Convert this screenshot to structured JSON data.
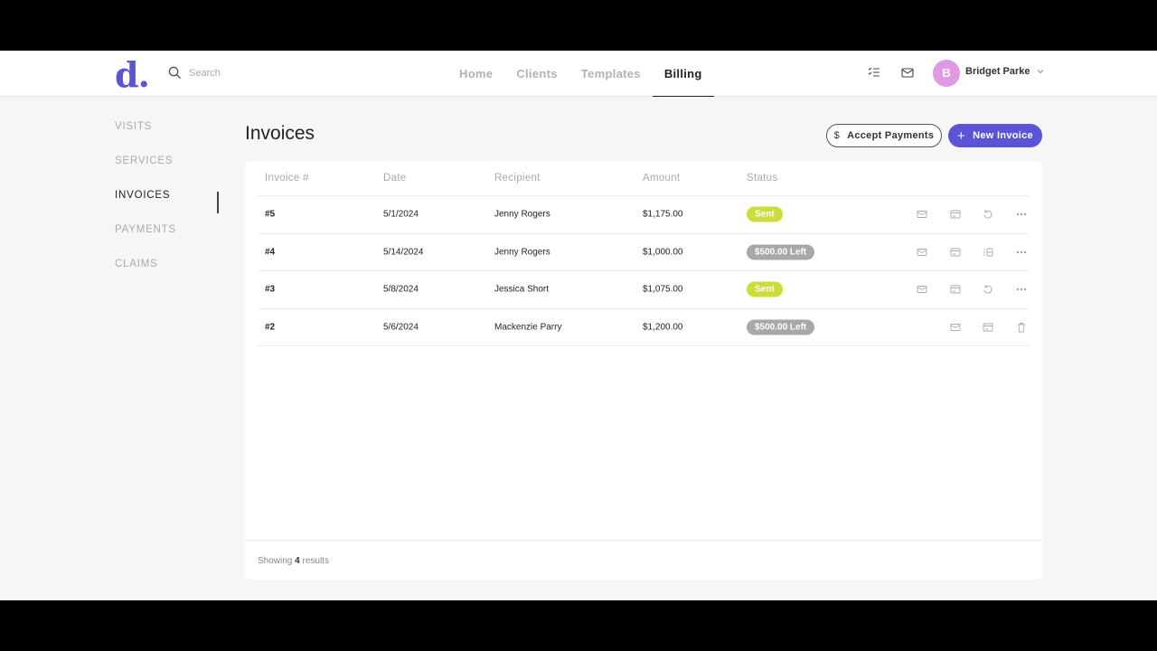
{
  "header": {
    "logo": "d.",
    "search_placeholder": "Search",
    "nav": [
      "Home",
      "Clients",
      "Templates",
      "Billing"
    ],
    "active_nav": "Billing",
    "user": {
      "initial": "B",
      "name": "Bridget Parke",
      "avatar_color": "#e09ae4"
    }
  },
  "sidebar": {
    "items": [
      "VISITS",
      "SERVICES",
      "INVOICES",
      "PAYMENTS",
      "CLAIMS"
    ],
    "active": "INVOICES"
  },
  "page": {
    "title": "Invoices",
    "accept_label": "Accept Payments",
    "new_label": "New Invoice",
    "accent": "#5b54d6"
  },
  "table": {
    "columns": [
      "Invoice #",
      "Date",
      "Recipient",
      "Amount",
      "Status"
    ],
    "rows": [
      {
        "invoice": "#5",
        "date": "5/1/2024",
        "recipient": "Jenny Rogers",
        "amount": "$1,175.00",
        "status": "Sent",
        "status_color": "#cddc39",
        "actions": [
          "mail-icon",
          "card-icon",
          "undo-icon",
          "more-icon"
        ]
      },
      {
        "invoice": "#4",
        "date": "5/14/2024",
        "recipient": "Jenny Rogers",
        "amount": "$1,000.00",
        "status": "$500.00 Left",
        "status_color": "#a8a8a8",
        "actions": [
          "mail-icon",
          "card-icon",
          "list-icon",
          "more-icon"
        ]
      },
      {
        "invoice": "#3",
        "date": "5/8/2024",
        "recipient": "Jessica Short",
        "amount": "$1,075.00",
        "status": "Sent",
        "status_color": "#cddc39",
        "actions": [
          "mail-icon",
          "card-icon",
          "undo-icon",
          "more-icon"
        ]
      },
      {
        "invoice": "#2",
        "date": "5/6/2024",
        "recipient": "Mackenzie Parry",
        "amount": "$1,200.00",
        "status": "$500.00 Left",
        "status_color": "#a8a8a8",
        "actions": [
          "mail-icon",
          "card-icon",
          "trash-icon"
        ]
      }
    ]
  },
  "footer": {
    "prefix": "Showing",
    "count": "4",
    "suffix": "results"
  }
}
